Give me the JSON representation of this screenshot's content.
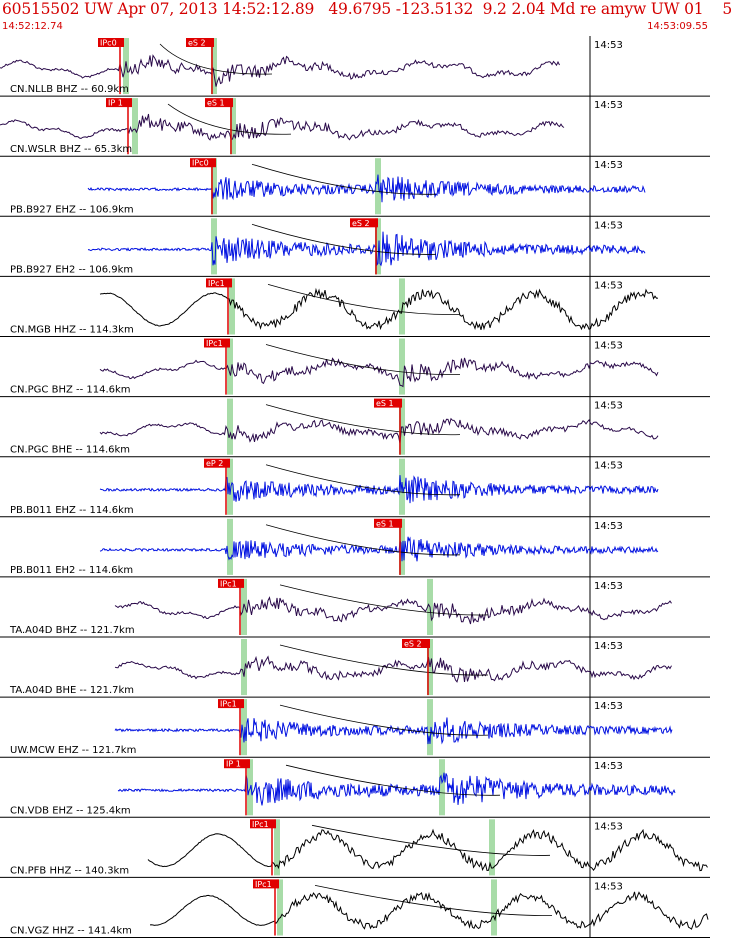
{
  "header": {
    "title": "60515502 UW Apr 07, 2013 14:52:12.89   49.6795 -123.5132  9.2 2.04 Md re amyw UW 01    5",
    "start_time": "14:52:12.74",
    "end_time": "14:53:09.55"
  },
  "colors": {
    "header_text": "#d40000",
    "pick_red": "#e00000",
    "window_green": "#a8dca8",
    "trace_blue": "#0010e0",
    "trace_purple": "#2a0a4a",
    "trace_black": "#000000"
  },
  "traces": [
    {
      "label": "CN.NLLB BHZ -- 60.9km",
      "time_tick": "14:53",
      "color": "#2a0a4a",
      "style": "lf",
      "amp": 0.55,
      "pick_label": "IPc0",
      "pick2_label": "eS 2"
    },
    {
      "label": "CN.WSLR BHZ -- 65.3km",
      "time_tick": "14:53",
      "color": "#2a0a4a",
      "style": "lf",
      "amp": 0.55,
      "pick_label": "IP 1",
      "pick2_label": "eS 1"
    },
    {
      "label": "PB.B927 EHZ -- 106.9km",
      "time_tick": "14:53",
      "color": "#0010e0",
      "style": "hf",
      "amp": 0.5,
      "pick_label": "IPc0",
      "pick2_label": ""
    },
    {
      "label": "PB.B927 EH2 -- 106.9km",
      "time_tick": "14:53",
      "color": "#0010e0",
      "style": "hf",
      "amp": 0.6,
      "pick_label": "",
      "pick2_label": "eS 2"
    },
    {
      "label": "CN.MGB HHZ -- 114.3km",
      "time_tick": "14:53",
      "color": "#000000",
      "style": "vlf",
      "amp": 0.6,
      "pick_label": "IPc1",
      "pick2_label": ""
    },
    {
      "label": "CN.PGC BHZ -- 114.6km",
      "time_tick": "14:53",
      "color": "#2a0a4a",
      "style": "lf",
      "amp": 0.55,
      "pick_label": "IPc1",
      "pick2_label": ""
    },
    {
      "label": "CN.PGC BHE -- 114.6km",
      "time_tick": "14:53",
      "color": "#2a0a4a",
      "style": "lf",
      "amp": 0.5,
      "pick_label": "",
      "pick2_label": "eS 1"
    },
    {
      "label": "PB.B011 EHZ -- 114.6km",
      "time_tick": "14:53",
      "color": "#0010e0",
      "style": "hf",
      "amp": 0.5,
      "pick_label": "eP 2",
      "pick2_label": ""
    },
    {
      "label": "PB.B011 EH2 -- 114.6km",
      "time_tick": "14:53",
      "color": "#0010e0",
      "style": "hf",
      "amp": 0.45,
      "pick_label": "",
      "pick2_label": "eS 1"
    },
    {
      "label": "TA.A04D BHZ -- 121.7km",
      "time_tick": "14:53",
      "color": "#2a0a4a",
      "style": "lf",
      "amp": 0.55,
      "pick_label": "IPc1",
      "pick2_label": ""
    },
    {
      "label": "TA.A04D BHE -- 121.7km",
      "time_tick": "14:53",
      "color": "#2a0a4a",
      "style": "lf",
      "amp": 0.55,
      "pick_label": "",
      "pick2_label": "eS 2"
    },
    {
      "label": "UW.MCW EHZ -- 121.7km",
      "time_tick": "14:53",
      "color": "#0010e0",
      "style": "hf",
      "amp": 0.5,
      "pick_label": "IPc1",
      "pick2_label": ""
    },
    {
      "label": "CN.VDB EHZ -- 125.4km",
      "time_tick": "14:53",
      "color": "#0010e0",
      "style": "hf",
      "amp": 0.65,
      "pick_label": "IP 1",
      "pick2_label": ""
    },
    {
      "label": "CN.PFB HHZ -- 140.3km",
      "time_tick": "14:53",
      "color": "#000000",
      "style": "vlf",
      "amp": 0.6,
      "pick_label": "IPc1",
      "pick2_label": ""
    },
    {
      "label": "CN.VGZ HHZ -- 141.4km",
      "time_tick": "14:53",
      "color": "#000000",
      "style": "vlf",
      "amp": 0.55,
      "pick_label": "IPc1",
      "pick2_label": ""
    }
  ]
}
